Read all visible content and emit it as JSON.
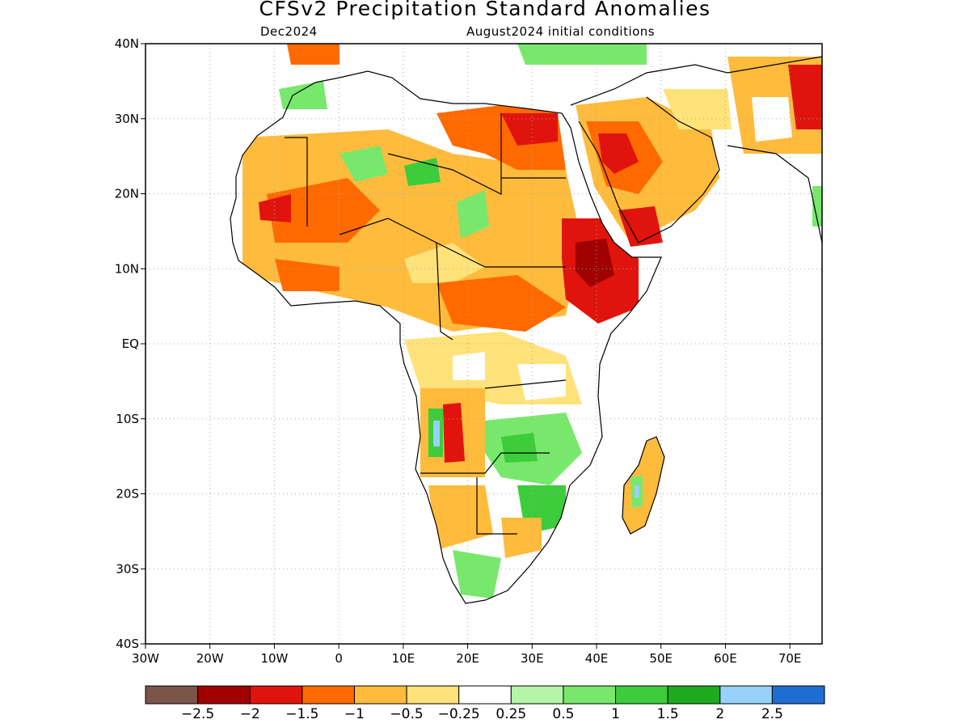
{
  "title": "CFSv2 Precipitation Standard Anomalies",
  "subtitle_left": "Dec2024",
  "subtitle_right": "August2024 initial conditions",
  "map": {
    "lon_range": [
      -30,
      75
    ],
    "lat_range": [
      -40,
      40
    ],
    "y_ticks": [
      "40N",
      "30N",
      "20N",
      "10N",
      "EQ",
      "10S",
      "20S",
      "30S",
      "40S"
    ],
    "x_ticks": [
      "30W",
      "20W",
      "10W",
      "0",
      "10E",
      "20E",
      "30E",
      "40E",
      "50E",
      "60E",
      "70E"
    ],
    "grid": "dotted"
  },
  "colorbar": {
    "colors": [
      "#7a5548",
      "#a00000",
      "#e0140c",
      "#ff6a00",
      "#ffbb3c",
      "#ffe27a",
      "#ffffff",
      "#b4f5a8",
      "#78e86c",
      "#3ccc3c",
      "#1eaa1e",
      "#96d2fa",
      "#1e6ed2"
    ],
    "labels": [
      "−2.5",
      "−2",
      "−1.5",
      "−1",
      "−0.5",
      "−0.25",
      "0.25",
      "0.5",
      "1",
      "1.5",
      "2",
      "2.5"
    ]
  }
}
